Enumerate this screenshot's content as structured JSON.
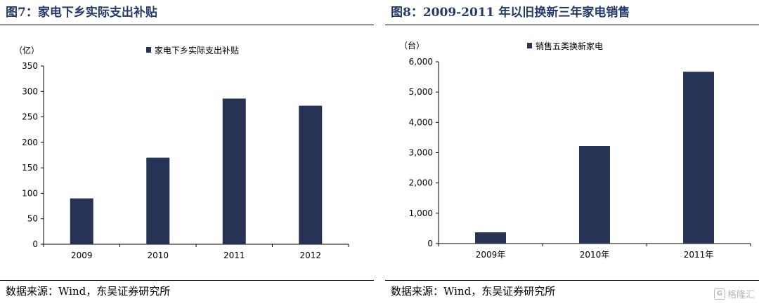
{
  "left_panel": {
    "title": "图7：家电下乡实际支出补贴",
    "source": "数据来源：Wind，东吴证券研究所"
  },
  "right_panel": {
    "title": "图8：2009-2011 年以旧换新三年家电销售",
    "source": "数据来源：Wind，东吴证券研究所"
  },
  "watermark": {
    "logo": "G",
    "text": "格隆汇"
  },
  "chart_data": [
    {
      "type": "bar",
      "unit_label": "（亿）",
      "categories": [
        "2009",
        "2010",
        "2011",
        "2012"
      ],
      "series": [
        {
          "name": "家电下乡实际支出补贴",
          "values": [
            90,
            170,
            286,
            272
          ],
          "color": "#263354"
        }
      ],
      "ylim": [
        0,
        350
      ],
      "yticks": [
        0,
        50,
        100,
        150,
        200,
        250,
        300,
        350
      ],
      "ytick_labels": [
        "0",
        "50",
        "100",
        "150",
        "200",
        "250",
        "300",
        "350"
      ],
      "legend_position": "top-center",
      "grid": false
    },
    {
      "type": "bar",
      "unit_label": "（台）",
      "categories": [
        "2009年",
        "2010年",
        "2011年"
      ],
      "series": [
        {
          "name": "销售五类换新家电",
          "values": [
            370,
            3220,
            5670
          ],
          "color": "#263354"
        }
      ],
      "ylim": [
        0,
        6000
      ],
      "yticks": [
        0,
        1000,
        2000,
        3000,
        4000,
        5000,
        6000
      ],
      "ytick_labels": [
        "0",
        "1,000",
        "2,000",
        "3,000",
        "4,000",
        "5,000",
        "6,000"
      ],
      "legend_position": "top-center",
      "grid": false
    }
  ]
}
